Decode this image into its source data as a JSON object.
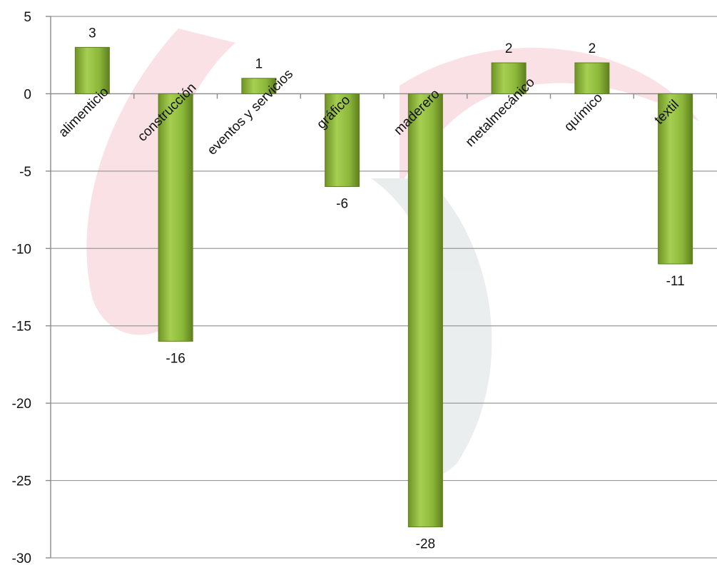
{
  "chart_data": {
    "type": "bar",
    "categories": [
      "alimenticio",
      "construcción",
      "eventos y servicios",
      "gráfico",
      "maderero",
      "metalmecánico",
      "químico",
      "textil"
    ],
    "values": [
      3,
      -16,
      1,
      -6,
      -28,
      2,
      2,
      -11
    ],
    "data_labels": [
      "3",
      "-16",
      "1",
      "-6",
      "-28",
      "2",
      "2",
      "-11"
    ],
    "y_ticks": [
      "5",
      "0",
      "-5",
      "-10",
      "-15",
      "-20",
      "-25",
      "-30"
    ],
    "y_tick_values": [
      5,
      0,
      -5,
      -10,
      -15,
      -20,
      -25,
      -30
    ],
    "ylim": [
      -30,
      5
    ],
    "grid": true,
    "legend": "none",
    "bar_color": "#8cb83a",
    "bar_color_dark": "#5f7f1e",
    "background_watermark_colors": [
      "#d9183b",
      "#5a7a7a"
    ]
  }
}
